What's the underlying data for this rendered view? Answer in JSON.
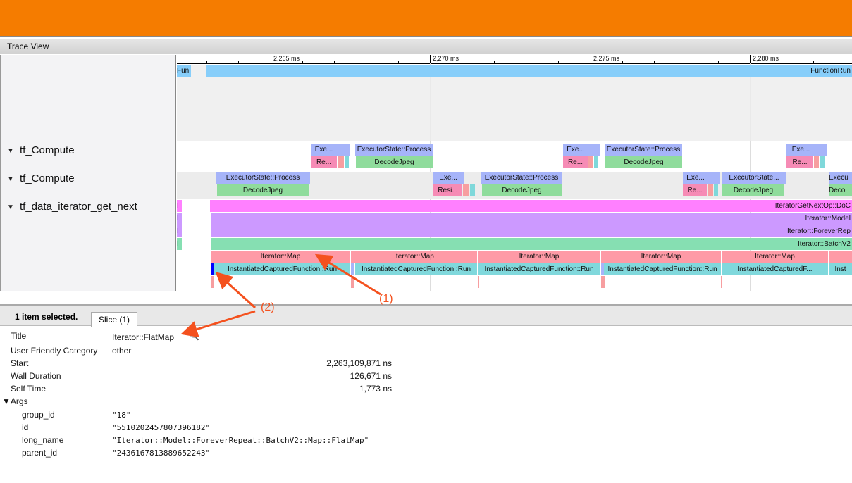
{
  "title": "Trace View",
  "ticks": [
    "2,265 ms",
    "2,270 ms",
    "2,275 ms",
    "2,280 ms"
  ],
  "tracks": [
    "tf_Compute",
    "tf_Compute",
    "tf_data_iterator_get_next"
  ],
  "slices": {
    "fun": "Fun",
    "function_run": "FunctionRun",
    "exe": "Exe...",
    "re": "Re...",
    "resi": "Resi...",
    "process": "ExecutorState::Process",
    "process_short": "ExecutorState...",
    "exec_short": "Execu",
    "decode": "DecodeJpeg",
    "deco": "Deco",
    "i": "I",
    "getnext": "IteratorGetNextOp::DoC",
    "model": "Iterator::Model",
    "forever": "Iterator::ForeverRep",
    "batch": "Iterator::BatchV2",
    "map": "Iterator::Map",
    "icf": "InstantiatedCapturedFunction::Run",
    "icf_short": "InstantiatedCapturedF...",
    "inst": "Inst"
  },
  "details": {
    "selected": "1 item selected.",
    "tab": "Slice (1)",
    "fields": [
      {
        "label": "Title",
        "value": "Iterator::FlatMap"
      },
      {
        "label": "User Friendly Category",
        "value": "other"
      },
      {
        "label": "Start",
        "value": "2,263,109,871 ns"
      },
      {
        "label": "Wall Duration",
        "value": "126,671 ns"
      },
      {
        "label": "Self Time",
        "value": "1,773 ns"
      }
    ],
    "args_label": "Args",
    "args": [
      {
        "key": "group_id",
        "value": "\"18\""
      },
      {
        "key": "id",
        "value": "\"5510202457807396182\""
      },
      {
        "key": "long_name",
        "value": "\"Iterator::Model::ForeverRepeat::BatchV2::Map::FlatMap\""
      },
      {
        "key": "parent_id",
        "value": "\"2436167813889652243\""
      }
    ]
  },
  "annotations": [
    "(1)",
    "(2)"
  ],
  "colors": {
    "header": "#f57c00",
    "annotation": "#f4511e",
    "selected": "#0000ff"
  }
}
